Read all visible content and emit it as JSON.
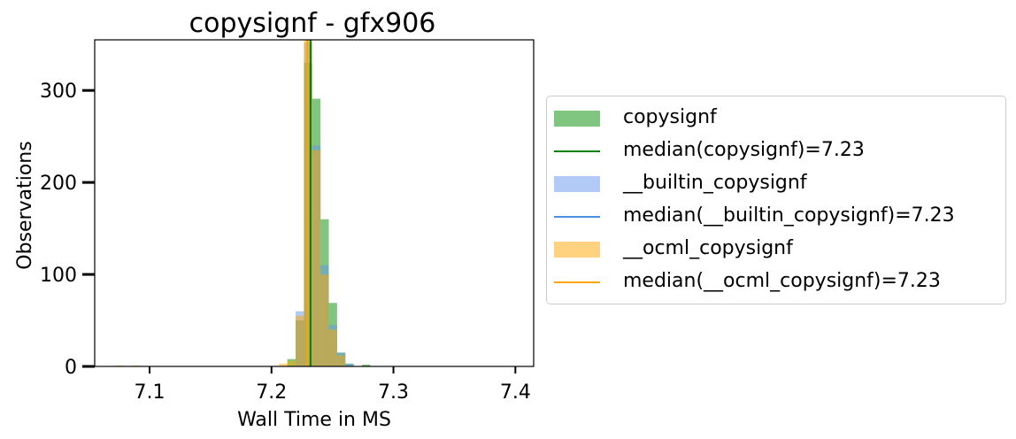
{
  "chart_data": {
    "type": "histogram",
    "title": "copysignf - gfx906",
    "xlabel": "Wall Time in MS",
    "ylabel": "Observations",
    "xlim": [
      7.055,
      7.415
    ],
    "ylim": [
      0,
      355
    ],
    "x_ticks": [
      7.1,
      7.2,
      7.3,
      7.4
    ],
    "x_tick_labels": [
      "7.1",
      "7.2",
      "7.3",
      "7.4"
    ],
    "y_ticks": [
      0,
      100,
      200,
      300
    ],
    "y_tick_labels": [
      "0",
      "100",
      "200",
      "300"
    ],
    "bin_width": 0.0068,
    "grid": false,
    "legend_placement": "outside-right",
    "series": [
      {
        "name": "copysignf",
        "color": "#2ca02c",
        "alpha": 0.6,
        "bins": [
          {
            "x": 7.213,
            "value": 8
          },
          {
            "x": 7.2198,
            "value": 50
          },
          {
            "x": 7.2266,
            "value": 330
          },
          {
            "x": 7.2334,
            "value": 291
          },
          {
            "x": 7.2402,
            "value": 160
          },
          {
            "x": 7.247,
            "value": 69
          },
          {
            "x": 7.2538,
            "value": 15
          },
          {
            "x": 7.2606,
            "value": 3
          },
          {
            "x": 7.2742,
            "value": 2
          }
        ]
      },
      {
        "name": "__builtin_copysignf",
        "color": "#6495ed",
        "alpha": 0.5,
        "bins": [
          {
            "x": 7.2198,
            "value": 60
          },
          {
            "x": 7.2266,
            "value": 352
          },
          {
            "x": 7.2334,
            "value": 240
          },
          {
            "x": 7.2402,
            "value": 110
          },
          {
            "x": 7.247,
            "value": 45
          },
          {
            "x": 7.2538,
            "value": 15
          },
          {
            "x": 7.2606,
            "value": 3
          }
        ]
      },
      {
        "name": "__ocml_copysignf",
        "color": "#ffa500",
        "alpha": 0.5,
        "bins": [
          {
            "x": 7.0722,
            "value": 1
          },
          {
            "x": 7.0858,
            "value": 1
          },
          {
            "x": 7.2062,
            "value": 3
          },
          {
            "x": 7.213,
            "value": 6
          },
          {
            "x": 7.2198,
            "value": 55
          },
          {
            "x": 7.2266,
            "value": 355
          },
          {
            "x": 7.2334,
            "value": 235
          },
          {
            "x": 7.2402,
            "value": 100
          },
          {
            "x": 7.247,
            "value": 40
          },
          {
            "x": 7.2538,
            "value": 12
          }
        ]
      }
    ],
    "medians": [
      {
        "name": "median(copysignf)=7.23",
        "value": 7.232,
        "color": "#008000"
      },
      {
        "name": "median(__builtin_copysignf)=7.23",
        "value": 7.2295,
        "color": "#4a90e2"
      },
      {
        "name": "median(__ocml_copysignf)=7.23",
        "value": 7.2295,
        "color": "#ffa500"
      }
    ],
    "legend": [
      {
        "kind": "patch",
        "label": "copysignf",
        "color": "#2ca02c",
        "alpha": 0.6
      },
      {
        "kind": "line",
        "label": "median(copysignf)=7.23",
        "color": "#008000"
      },
      {
        "kind": "patch",
        "label": "__builtin_copysignf",
        "color": "#6495ed",
        "alpha": 0.5
      },
      {
        "kind": "line",
        "label": "median(__builtin_copysignf)=7.23",
        "color": "#4a90e2"
      },
      {
        "kind": "patch",
        "label": "__ocml_copysignf",
        "color": "#ffa500",
        "alpha": 0.5
      },
      {
        "kind": "line",
        "label": "median(__ocml_copysignf)=7.23",
        "color": "#ffa500"
      }
    ]
  }
}
